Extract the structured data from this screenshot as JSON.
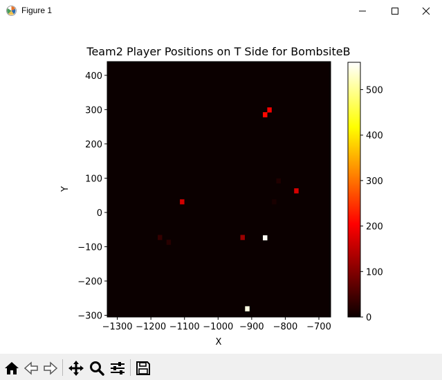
{
  "window": {
    "title": "Figure 1"
  },
  "toolbar": {
    "buttons": [
      {
        "name": "home-icon",
        "tooltip": "Reset original view"
      },
      {
        "name": "back-icon",
        "tooltip": "Back to previous view"
      },
      {
        "name": "forward-icon",
        "tooltip": "Forward to next view"
      },
      {
        "name": "pan-icon",
        "tooltip": "Pan axes"
      },
      {
        "name": "zoom-icon",
        "tooltip": "Zoom to rectangle"
      },
      {
        "name": "configure-subplots-icon",
        "tooltip": "Configure subplots"
      },
      {
        "name": "save-icon",
        "tooltip": "Save the figure"
      }
    ]
  },
  "chart_data": {
    "type": "heatmap",
    "title": "Team2 Player Positions on T Side for BombsiteB",
    "xlabel": "X",
    "ylabel": "Y",
    "xlim": [
      -1330,
      -665
    ],
    "ylim": [
      -305,
      440
    ],
    "x_ticks": [
      -1300,
      -1200,
      -1100,
      -1000,
      -900,
      -800,
      -700
    ],
    "x_tick_labels": [
      "−1300",
      "−1200",
      "−1100",
      "−1000",
      "−900",
      "−800",
      "−700"
    ],
    "y_ticks": [
      -300,
      -200,
      -100,
      0,
      100,
      200,
      300,
      400
    ],
    "y_tick_labels": [
      "−300",
      "−200",
      "−100",
      "0",
      "100",
      "200",
      "300",
      "400"
    ],
    "colormap": "hot",
    "background_color": "#0b0000",
    "colorbar": {
      "min": 0,
      "max": 560,
      "ticks": [
        0,
        100,
        200,
        300,
        400,
        500
      ],
      "tick_labels": [
        "0",
        "100",
        "200",
        "300",
        "400",
        "500"
      ]
    },
    "cell_size": [
      13.3,
      14.9
    ],
    "cells": [
      {
        "x": -913,
        "y": -281,
        "value": 545
      },
      {
        "x": -860,
        "y": -74,
        "value": 555
      },
      {
        "x": -860,
        "y": 285,
        "value": 210
      },
      {
        "x": -847,
        "y": 299,
        "value": 195
      },
      {
        "x": -1107,
        "y": 31,
        "value": 165
      },
      {
        "x": -767,
        "y": 63,
        "value": 170
      },
      {
        "x": -927,
        "y": -73,
        "value": 120
      },
      {
        "x": -1173,
        "y": -73,
        "value": 35
      },
      {
        "x": -1147,
        "y": -87,
        "value": 25
      },
      {
        "x": -820,
        "y": 92,
        "value": 18
      },
      {
        "x": -833,
        "y": 31,
        "value": 12
      }
    ],
    "grid": false
  }
}
